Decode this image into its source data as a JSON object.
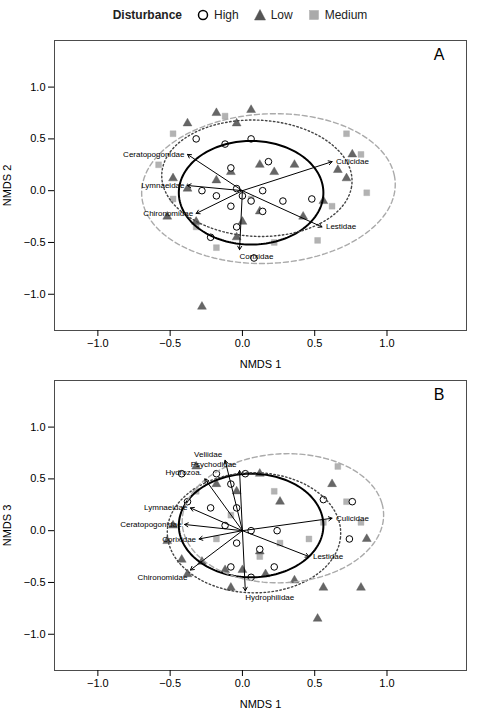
{
  "chart_data": [
    {
      "type": "scatter",
      "title": "A",
      "xlabel": "NMDS 1",
      "ylabel": "NMDS 2",
      "xlim": [
        -1.3,
        1.55
      ],
      "ylim": [
        -1.35,
        1.45
      ],
      "xticks": [
        {
          "value": -1.0,
          "label": "−1.0"
        },
        {
          "value": -0.5,
          "label": "−0.5"
        },
        {
          "value": 0.0,
          "label": "0.0"
        },
        {
          "value": 0.5,
          "label": "0.5"
        },
        {
          "value": 1.0,
          "label": "1.0"
        }
      ],
      "yticks": [
        {
          "value": -1.0,
          "label": "−1.0"
        },
        {
          "value": -0.5,
          "label": "−0.5"
        },
        {
          "value": 0.0,
          "label": "0.0"
        },
        {
          "value": 0.5,
          "label": "0.5"
        },
        {
          "value": 1.0,
          "label": "1.0"
        }
      ],
      "grid": false,
      "legend": "top",
      "legend_title": "Disturbance",
      "series": [
        {
          "name": "High",
          "color": "#000000",
          "marker": "open_circle",
          "values": [
            [
              -0.32,
              0.5
            ],
            [
              -0.12,
              0.45
            ],
            [
              0.06,
              0.5
            ],
            [
              0.18,
              0.28
            ],
            [
              -0.08,
              0.22
            ],
            [
              -0.04,
              0.02
            ],
            [
              0.14,
              0.0
            ],
            [
              -0.18,
              -0.05
            ],
            [
              0.06,
              -0.1
            ],
            [
              -0.08,
              -0.15
            ],
            [
              0.28,
              -0.1
            ],
            [
              0.14,
              -0.2
            ],
            [
              -0.04,
              -0.35
            ],
            [
              -0.22,
              -0.45
            ],
            [
              0.08,
              -0.65
            ],
            [
              0.48,
              -0.08
            ],
            [
              0.0,
              -0.05
            ],
            [
              -0.28,
              0.0
            ]
          ]
        },
        {
          "name": "Low",
          "color": "#555555",
          "marker": "triangle",
          "values": [
            [
              -0.38,
              0.65
            ],
            [
              -0.18,
              0.75
            ],
            [
              -0.04,
              0.65
            ],
            [
              0.06,
              0.78
            ],
            [
              -0.48,
              0.12
            ],
            [
              -0.38,
              0.02
            ],
            [
              -0.52,
              -0.25
            ],
            [
              -0.32,
              -0.3
            ],
            [
              -0.18,
              0.1
            ],
            [
              -0.08,
              0.18
            ],
            [
              0.12,
              0.25
            ],
            [
              0.22,
              0.18
            ],
            [
              0.36,
              0.25
            ],
            [
              0.66,
              0.2
            ],
            [
              0.76,
              0.35
            ],
            [
              0.72,
              0.12
            ],
            [
              0.56,
              -0.1
            ],
            [
              0.42,
              -0.25
            ],
            [
              0.12,
              -0.2
            ],
            [
              -0.04,
              -0.45
            ],
            [
              -0.28,
              -1.12
            ],
            [
              0.0,
              -0.3
            ]
          ]
        },
        {
          "name": "Medium",
          "color": "#aaaaaa",
          "marker": "square",
          "values": [
            [
              -0.48,
              0.55
            ],
            [
              -0.58,
              0.25
            ],
            [
              -0.12,
              0.72
            ],
            [
              0.72,
              0.55
            ],
            [
              0.82,
              0.35
            ],
            [
              0.86,
              -0.02
            ],
            [
              -0.32,
              -0.35
            ],
            [
              -0.18,
              -0.55
            ],
            [
              0.22,
              -0.5
            ],
            [
              0.52,
              -0.48
            ],
            [
              -0.48,
              -0.08
            ],
            [
              0.06,
              -0.08
            ],
            [
              0.62,
              -0.15
            ]
          ]
        }
      ],
      "ellipses": [
        {
          "name": "High",
          "cx": 0.06,
          "cy": -0.02,
          "rx": 0.5,
          "ry": 0.5,
          "angle": 0,
          "color": "#000000",
          "line_style": "solid"
        },
        {
          "name": "Low",
          "cx": 0.1,
          "cy": 0.12,
          "rx": 0.66,
          "ry": 0.56,
          "angle": -8,
          "color": "#444444",
          "line_style": "dotted"
        },
        {
          "name": "Medium",
          "cx": 0.18,
          "cy": 0.02,
          "rx": 0.88,
          "ry": 0.72,
          "angle": 8,
          "color": "#aaaaaa",
          "line_style": "dashed"
        }
      ],
      "arrows": [
        {
          "x0": 0.0,
          "y0": 0.0,
          "x": -0.38,
          "y": 0.35,
          "label": "Ceratopogonidae"
        },
        {
          "x0": 0.0,
          "y0": 0.0,
          "x": -0.38,
          "y": 0.05,
          "label": "Lymnaeidae"
        },
        {
          "x0": 0.0,
          "y0": 0.0,
          "x": -0.32,
          "y": -0.22,
          "label": "Chironomidae"
        },
        {
          "x0": 0.0,
          "y0": 0.0,
          "x": -0.02,
          "y": -0.57,
          "label": "Corixidae"
        },
        {
          "x0": 0.0,
          "y0": 0.0,
          "x": 0.55,
          "y": -0.35,
          "label": "Lestidae"
        },
        {
          "x0": 0.0,
          "y0": 0.0,
          "x": 0.62,
          "y": 0.28,
          "label": "Culicidae"
        }
      ]
    },
    {
      "type": "scatter",
      "title": "B",
      "xlabel": "NMDS 1",
      "ylabel": "NMDS 3",
      "xlim": [
        -1.3,
        1.55
      ],
      "ylim": [
        -1.35,
        1.45
      ],
      "xticks": [
        {
          "value": -1.0,
          "label": "−1.0"
        },
        {
          "value": -0.5,
          "label": "−0.5"
        },
        {
          "value": 0.0,
          "label": "0.0"
        },
        {
          "value": 0.5,
          "label": "0.5"
        },
        {
          "value": 1.0,
          "label": "1.0"
        }
      ],
      "yticks": [
        {
          "value": -1.0,
          "label": "−1.0"
        },
        {
          "value": -0.5,
          "label": "−0.5"
        },
        {
          "value": 0.0,
          "label": "0.0"
        },
        {
          "value": 0.5,
          "label": "0.5"
        },
        {
          "value": 1.0,
          "label": "1.0"
        }
      ],
      "grid": false,
      "series": [
        {
          "name": "High",
          "color": "#000000",
          "marker": "open_circle",
          "values": [
            [
              -0.42,
              0.55
            ],
            [
              -0.18,
              0.55
            ],
            [
              -0.08,
              0.45
            ],
            [
              0.02,
              0.55
            ],
            [
              -0.38,
              0.28
            ],
            [
              -0.22,
              0.22
            ],
            [
              -0.04,
              0.22
            ],
            [
              -0.12,
              0.05
            ],
            [
              0.06,
              0.0
            ],
            [
              0.24,
              0.0
            ],
            [
              -0.04,
              -0.12
            ],
            [
              0.12,
              -0.18
            ],
            [
              0.22,
              -0.35
            ],
            [
              0.06,
              -0.45
            ],
            [
              -0.08,
              -0.35
            ],
            [
              0.56,
              0.3
            ],
            [
              0.76,
              0.28
            ],
            [
              0.74,
              -0.08
            ]
          ]
        },
        {
          "name": "Low",
          "color": "#555555",
          "marker": "triangle",
          "values": [
            [
              -0.32,
              0.62
            ],
            [
              -0.18,
              0.45
            ],
            [
              -0.04,
              0.38
            ],
            [
              0.12,
              0.55
            ],
            [
              -0.48,
              0.05
            ],
            [
              -0.52,
              -0.1
            ],
            [
              -0.42,
              -0.28
            ],
            [
              -0.38,
              -0.42
            ],
            [
              -0.28,
              -0.3
            ],
            [
              -0.12,
              -0.38
            ],
            [
              0.0,
              -0.38
            ],
            [
              -0.08,
              -0.55
            ],
            [
              0.16,
              -0.42
            ],
            [
              0.36,
              -0.48
            ],
            [
              0.56,
              -0.55
            ],
            [
              0.62,
              0.45
            ],
            [
              0.86,
              -0.08
            ],
            [
              0.82,
              -0.55
            ],
            [
              0.26,
              0.28
            ],
            [
              0.12,
              -0.2
            ],
            [
              0.52,
              -0.85
            ]
          ]
        },
        {
          "name": "Medium",
          "color": "#aaaaaa",
          "marker": "square",
          "values": [
            [
              -0.32,
              0.38
            ],
            [
              0.22,
              0.38
            ],
            [
              0.66,
              0.62
            ],
            [
              0.72,
              0.28
            ],
            [
              0.82,
              0.08
            ],
            [
              0.56,
              0.08
            ],
            [
              0.46,
              -0.08
            ],
            [
              -0.18,
              -0.08
            ],
            [
              0.26,
              -0.12
            ],
            [
              0.12,
              -0.25
            ],
            [
              -0.08,
              0.15
            ]
          ]
        }
      ],
      "ellipses": [
        {
          "name": "High",
          "cx": 0.06,
          "cy": 0.05,
          "rx": 0.5,
          "ry": 0.5,
          "angle": 0,
          "color": "#000000",
          "line_style": "solid"
        },
        {
          "name": "Low",
          "cx": 0.08,
          "cy": -0.02,
          "rx": 0.6,
          "ry": 0.58,
          "angle": -5,
          "color": "#444444",
          "line_style": "dotted"
        },
        {
          "name": "Medium",
          "cx": 0.28,
          "cy": 0.12,
          "rx": 0.7,
          "ry": 0.62,
          "angle": 12,
          "color": "#aaaaaa",
          "line_style": "dashed"
        }
      ],
      "arrows": [
        {
          "x0": 0.0,
          "y0": 0.0,
          "x": -0.12,
          "y": 0.68,
          "label": "Veliidae"
        },
        {
          "x0": 0.0,
          "y0": 0.0,
          "x": -0.02,
          "y": 0.58,
          "label": "Psychodidae"
        },
        {
          "x0": 0.0,
          "y0": 0.0,
          "x": -0.26,
          "y": 0.5,
          "label": "Hydrozoa."
        },
        {
          "x0": 0.0,
          "y0": 0.0,
          "x": -0.36,
          "y": 0.22,
          "label": "Lymnaeidae"
        },
        {
          "x0": 0.0,
          "y0": 0.0,
          "x": -0.4,
          "y": 0.06,
          "label": "Ceratopogonidae"
        },
        {
          "x0": 0.0,
          "y0": 0.0,
          "x": -0.3,
          "y": -0.08,
          "label": "Corixidae"
        },
        {
          "x0": 0.0,
          "y0": 0.0,
          "x": -0.36,
          "y": -0.38,
          "label": "Chironomidae"
        },
        {
          "x0": 0.0,
          "y0": 0.0,
          "x": 0.02,
          "y": -0.58,
          "label": "Hydrophilidae"
        },
        {
          "x0": 0.0,
          "y0": 0.0,
          "x": 0.46,
          "y": -0.25,
          "label": "Lestidae"
        },
        {
          "x0": 0.0,
          "y0": 0.0,
          "x": 0.62,
          "y": 0.12,
          "label": "Culicidae"
        }
      ]
    }
  ]
}
